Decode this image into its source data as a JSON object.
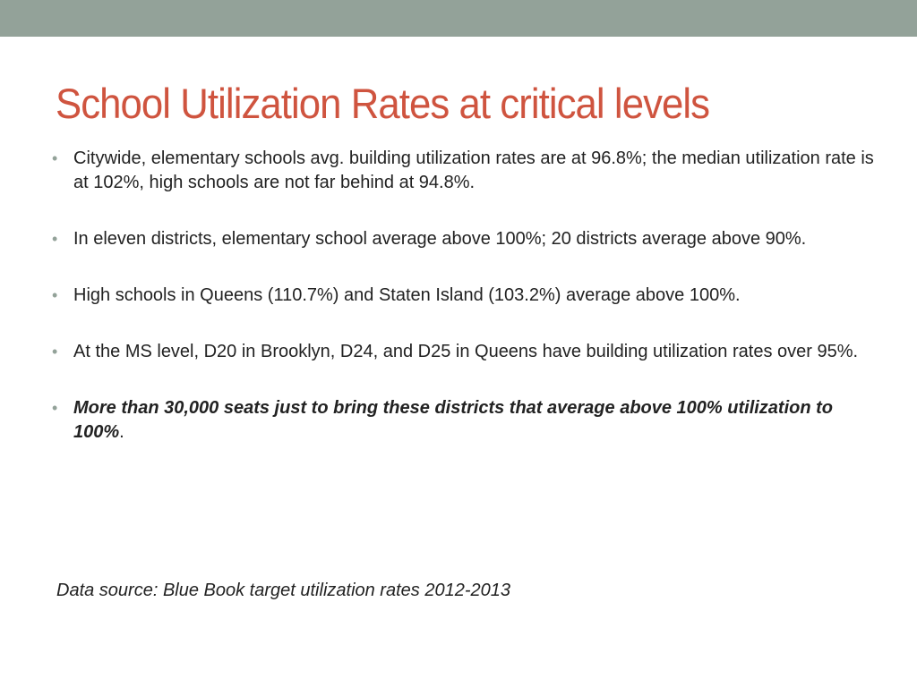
{
  "slide": {
    "title": "School Utilization Rates at critical levels",
    "bullet_marker": "•",
    "bullets": [
      "Citywide, elementary schools avg. building utilization rates are at 96.8%; the median utilization rate is at 102%, high schools are not far behind at 94.8%.",
      "In eleven districts, elementary school average above 100%; 20 districts average above 90%.",
      "High schools in Queens (110.7%) and Staten Island (103.2%) average above 100%.",
      "At the MS level, D20 in Brooklyn, D24, and D25 in Queens have building utilization rates over 95%."
    ],
    "emphasis_bullet": {
      "bold_italic": "More than 30,000 seats just to bring these districts that average above 100% utilization to 100%",
      "suffix": "."
    },
    "source": "Data source: Blue Book target utilization rates 2012-2013"
  },
  "colors": {
    "top_bar": "#93a299",
    "title": "#cf543f",
    "body_text": "#222222",
    "bullet": "#93a299"
  }
}
